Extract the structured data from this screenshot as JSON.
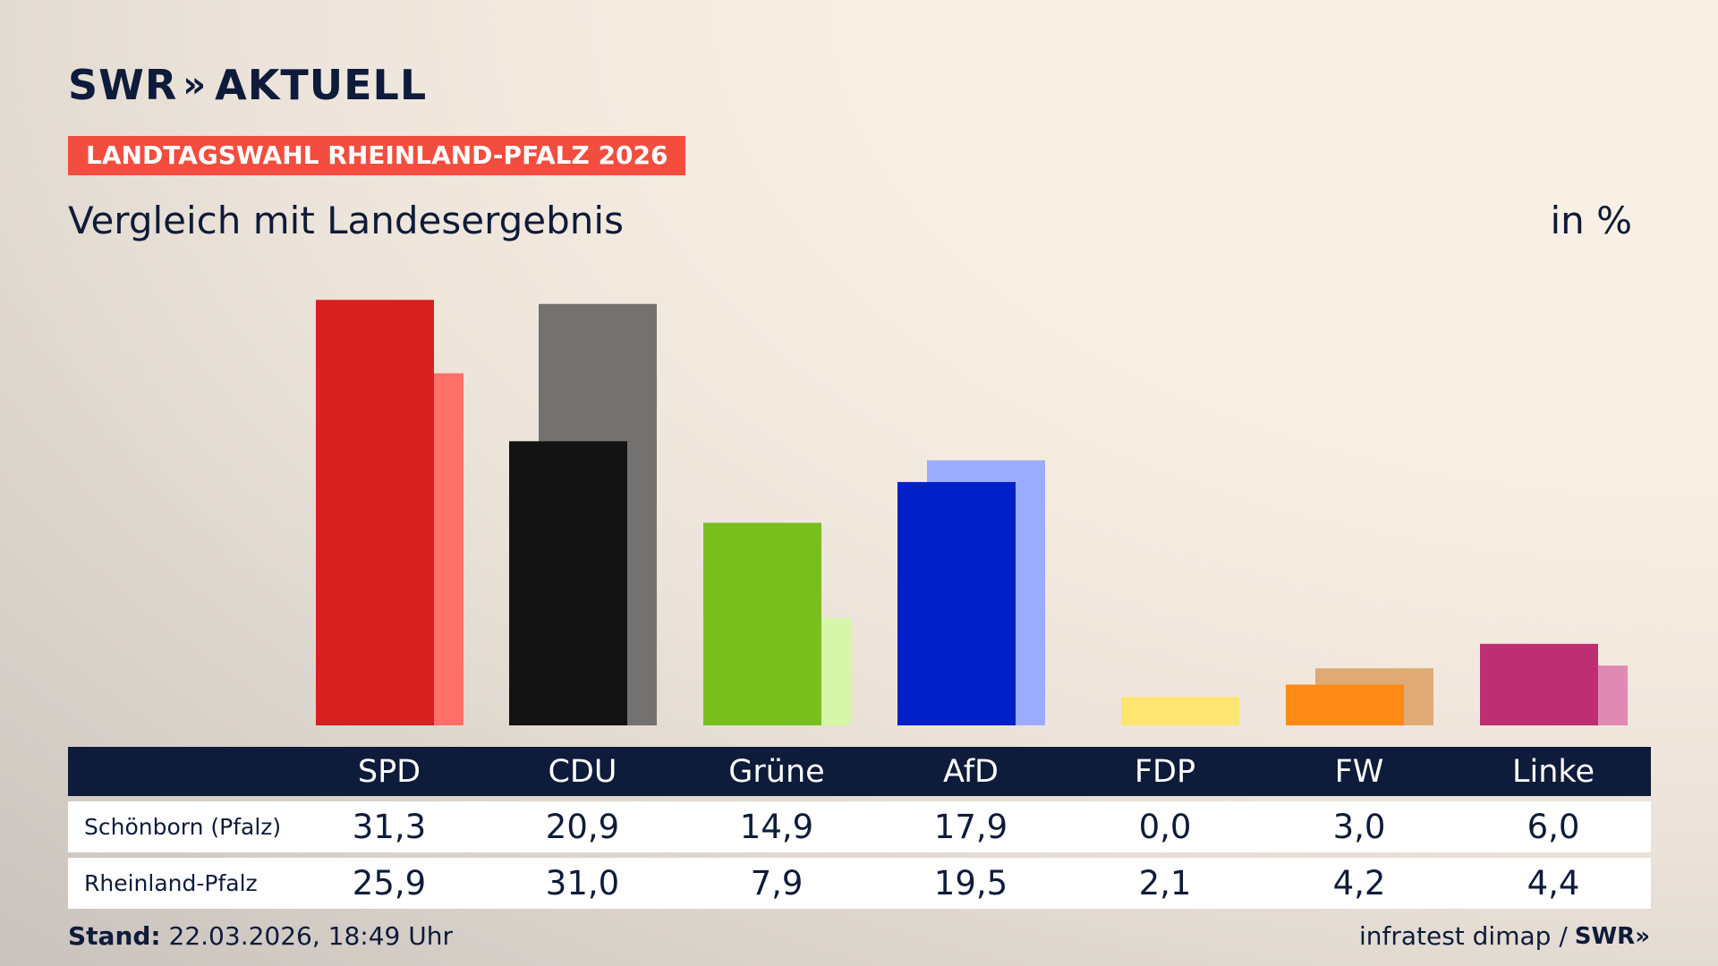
{
  "header": {
    "logo_text": "SWR",
    "logo_chevrons": "»",
    "logo_suffix": "AKTUELL",
    "tag": "LANDTAGSWAHL RHEINLAND-PFALZ 2026",
    "subtitle": "Vergleich mit Landesergebnis",
    "unit": "in %"
  },
  "footer": {
    "stand_label": "Stand:",
    "stand_value": "22.03.2026, 18:49 Uhr",
    "source": "infratest dimap /",
    "source_logo": "SWR»"
  },
  "chart_data": {
    "type": "bar",
    "title": "",
    "categories": [
      "SPD",
      "CDU",
      "Grüne",
      "AfD",
      "FDP",
      "FW",
      "Linke"
    ],
    "series": [
      {
        "name": "Schönborn (Pfalz)",
        "values": [
          "31,3",
          "20,9",
          "14,9",
          "17,9",
          "0,0",
          "3,0",
          "6,0"
        ],
        "colors": [
          "#d62120",
          "#131313",
          "#78bf1e",
          "#0020c9",
          "#fde572",
          "#fd8a15",
          "#bd2f72"
        ]
      },
      {
        "name": "Rheinland-Pfalz",
        "values": [
          "25,9",
          "31,0",
          "7,9",
          "19,5",
          "2,1",
          "4,2",
          "4,4"
        ],
        "colors": [
          "#ff7068",
          "#737270",
          "#d6f6a8",
          "#9bacff",
          "#fde572",
          "#dfaa76",
          "#e08ab3"
        ]
      }
    ],
    "ylim": [
      0,
      32
    ],
    "grid": false
  }
}
